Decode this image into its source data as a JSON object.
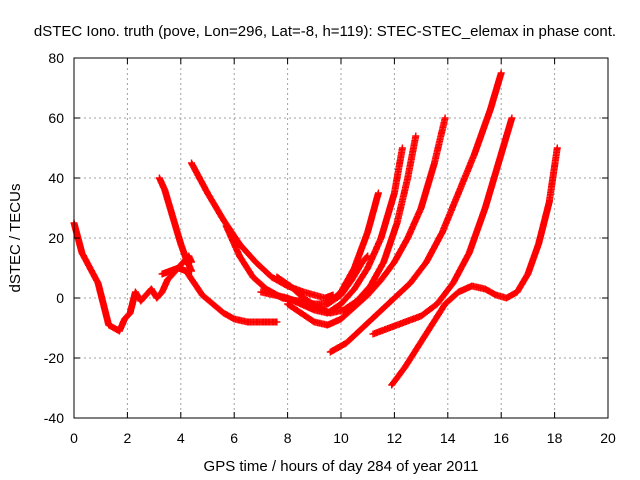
{
  "chart_data": {
    "type": "scatter",
    "title": "dSTEC Iono. truth (pove, Lon=296, Lat=-8, h=119): STEC-STEC_elemax in phase cont.",
    "xlabel": "GPS time / hours of day 284 of year 2011",
    "ylabel": "dSTEC  / TECUs",
    "xlim": [
      0,
      20
    ],
    "ylim": [
      -40,
      80
    ],
    "xticks": [
      "0",
      "2",
      "4",
      "6",
      "8",
      "10",
      "12",
      "14",
      "16",
      "18",
      "20"
    ],
    "yticks": [
      "-40",
      "-20",
      "0",
      "20",
      "40",
      "60",
      "80"
    ],
    "grid": true,
    "marker": "plus",
    "series_color": "#ff0000",
    "series": [
      {
        "x": [
          0,
          0.3,
          0.6,
          0.9,
          1.1,
          1.3,
          1.5,
          1.7,
          1.9,
          2.1,
          2.3,
          2.5,
          2.7,
          2.9,
          3.1,
          3.3,
          3.5,
          3.7,
          3.9,
          4.1,
          4.3,
          4.4
        ],
        "y": [
          25,
          15,
          10,
          5,
          -2,
          -9,
          -10,
          -11,
          -7,
          -5,
          2,
          -1,
          1,
          3,
          0,
          2,
          6,
          8,
          10,
          12,
          14,
          12
        ]
      },
      {
        "x": [
          3.3,
          3.6,
          3.9,
          4.2,
          4.5,
          4.8,
          5.2,
          5.6,
          6.0,
          6.5,
          7.0,
          7.6
        ],
        "y": [
          8,
          9,
          10,
          9,
          5,
          1,
          -2,
          -5,
          -7,
          -8,
          -8,
          -8
        ]
      },
      {
        "x": [
          3.2,
          3.4,
          3.6,
          3.8,
          4.0,
          4.2,
          4.4
        ],
        "y": [
          40,
          36,
          30,
          24,
          18,
          13,
          9
        ]
      },
      {
        "x": [
          4.4,
          5.0,
          5.6,
          6.2,
          6.8,
          7.4,
          8.0,
          8.6,
          9.0,
          9.4,
          9.7
        ],
        "y": [
          45,
          35,
          26,
          18,
          12,
          7,
          4,
          2,
          1,
          0,
          1
        ]
      },
      {
        "x": [
          5.7,
          6.2,
          6.7,
          7.2,
          7.8,
          8.4,
          9.0,
          9.5,
          10.0,
          10.5,
          11.0,
          11.4
        ],
        "y": [
          24,
          14,
          7,
          3,
          0,
          -1,
          -2,
          -2,
          2,
          10,
          22,
          35
        ]
      },
      {
        "x": [
          7.0,
          7.5,
          8.0,
          8.5,
          9.0,
          9.5,
          10.0,
          10.5,
          11.0,
          11.5,
          12.0,
          12.3
        ],
        "y": [
          2,
          1,
          0,
          -2,
          -4,
          -5,
          -2,
          3,
          10,
          20,
          35,
          50
        ]
      },
      {
        "x": [
          7.6,
          8.1,
          8.6,
          9.1,
          9.6,
          10.1,
          10.6,
          11.1,
          11.6,
          12.1,
          12.5,
          12.8
        ],
        "y": [
          7,
          4,
          0,
          -3,
          -5,
          -4,
          -1,
          4,
          12,
          25,
          40,
          54
        ]
      },
      {
        "x": [
          8.0,
          8.5,
          9.0,
          9.5,
          10.0,
          10.5,
          11.0,
          11.5,
          12.0,
          12.5,
          13.0,
          13.5,
          13.9
        ],
        "y": [
          -2,
          -5,
          -8,
          -9,
          -7,
          -3,
          1,
          6,
          12,
          20,
          30,
          45,
          60
        ]
      },
      {
        "x": [
          9.5,
          10.0,
          10.4,
          10.8,
          11.0
        ],
        "y": [
          -2,
          1,
          6,
          12,
          14
        ]
      },
      {
        "x": [
          9.6,
          10.2,
          10.8,
          11.4,
          12.0,
          12.6,
          13.2,
          13.8,
          14.4,
          15.0,
          15.6,
          16.0
        ],
        "y": [
          -18,
          -15,
          -10,
          -5,
          0,
          5,
          12,
          22,
          35,
          48,
          63,
          75
        ]
      },
      {
        "x": [
          11.2,
          11.8,
          12.4,
          13.0,
          13.6,
          14.2,
          14.8,
          15.4,
          16.0,
          16.4
        ],
        "y": [
          -12,
          -10,
          -8,
          -6,
          -2,
          5,
          15,
          30,
          48,
          60
        ]
      },
      {
        "x": [
          11.9,
          12.4,
          12.9,
          13.4,
          13.9,
          14.4,
          14.9,
          15.4,
          15.8,
          16.2,
          16.6,
          17.0,
          17.4,
          17.8,
          18.1
        ],
        "y": [
          -29,
          -23,
          -16,
          -9,
          -2,
          2,
          4,
          3,
          1,
          0,
          2,
          8,
          18,
          32,
          50
        ]
      }
    ]
  }
}
